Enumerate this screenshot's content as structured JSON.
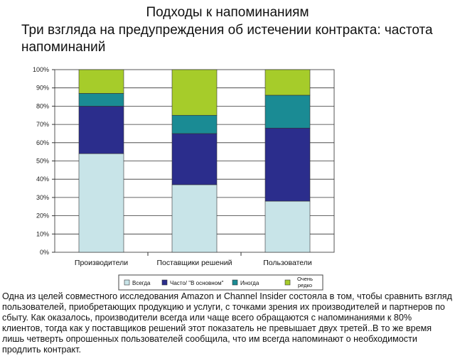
{
  "title": "Подходы к напоминаниям",
  "subtitle": "Три взгляда на предупреждения об истечении контракта: частота напоминаний",
  "caption": "Одна из целей совместного исследования Amazon и Channel Insider состояла в том, чтобы сравнить взгляд пользователей, приобретающих продукцию и услуги, с точками зрения их производителей и партнеров по сбыту. Как оказалось, производители всегда или чаще всего обращаются с напоминаниями к 80% клиентов, тогда как у поставщиков решений этот показатель не превышает двух третей..В то же время лишь четверть опрошенных пользователей сообщила, что им всегда напоминают о необходимости продлить контракт.",
  "chart_data": {
    "type": "bar",
    "stacked": true,
    "categories": [
      "Производители",
      "Поставщики решений",
      "Пользователи"
    ],
    "series": [
      {
        "name": "Всегда",
        "values": [
          54,
          37,
          28
        ],
        "color": "#c8e4e8"
      },
      {
        "name": "Часто/ \"В основном\"",
        "values": [
          26,
          28,
          40
        ],
        "color": "#2b2d8c"
      },
      {
        "name": "Иногда",
        "values": [
          7,
          10,
          18
        ],
        "color": "#1a8b94"
      },
      {
        "name": "Очень редко",
        "values": [
          13,
          25,
          14
        ],
        "color": "#a6cc2a"
      }
    ],
    "yticks": [
      "0%",
      "10%",
      "20%",
      "30%",
      "40%",
      "50%",
      "60%",
      "70%",
      "80%",
      "90%",
      "100%"
    ],
    "ylim": [
      0,
      100
    ],
    "legend_position": "bottom",
    "grid": true
  }
}
